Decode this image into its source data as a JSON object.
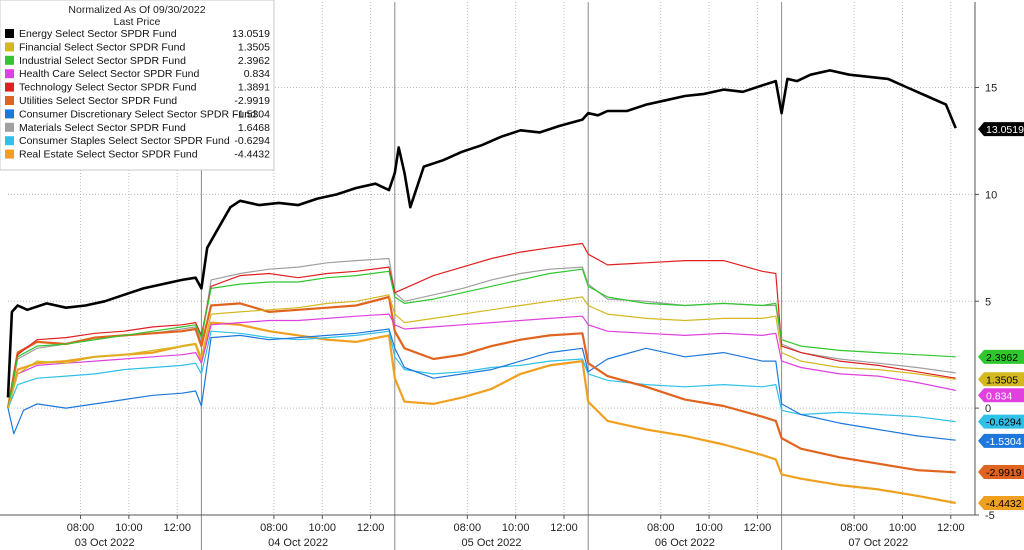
{
  "chart_data": {
    "type": "line",
    "header": {
      "line1": "Normalized As Of 09/30/2022",
      "line2": "Last Price"
    },
    "ylim": [
      -5,
      19
    ],
    "yticks": [
      -5,
      0,
      5,
      10,
      15
    ],
    "ytick_labels": [
      "-5",
      "0",
      "5",
      "10",
      "15"
    ],
    "grid": true,
    "legend_placement": "top-left",
    "x_time_ticks": [
      {
        "label": "08:00",
        "x": 1.375
      },
      {
        "label": "10:00",
        "x": 1.625
      },
      {
        "label": "12:00",
        "x": 1.875
      },
      {
        "label": "08:00",
        "x": 2.375
      },
      {
        "label": "10:00",
        "x": 2.625
      },
      {
        "label": "12:00",
        "x": 2.875
      },
      {
        "label": "08:00",
        "x": 3.375
      },
      {
        "label": "10:00",
        "x": 3.625
      },
      {
        "label": "12:00",
        "x": 3.875
      },
      {
        "label": "08:00",
        "x": 4.375
      },
      {
        "label": "10:00",
        "x": 4.625
      },
      {
        "label": "12:00",
        "x": 4.875
      },
      {
        "label": "08:00",
        "x": 5.375
      },
      {
        "label": "10:00",
        "x": 5.625
      },
      {
        "label": "12:00",
        "x": 5.875
      }
    ],
    "x_day_labels": [
      {
        "label": "03 Oct 2022",
        "x": 1.5
      },
      {
        "label": "04 Oct 2022",
        "x": 2.5
      },
      {
        "label": "05 Oct 2022",
        "x": 3.5
      },
      {
        "label": "06 Oct 2022",
        "x": 4.5
      },
      {
        "label": "07 Oct 2022",
        "x": 5.5
      }
    ],
    "day_boundaries": [
      2.0,
      3.0,
      4.0,
      5.0
    ],
    "xlim": [
      1.0,
      6.0
    ],
    "series": [
      {
        "name": "Energy Select Sector SPDR Fund",
        "value_label": "13.0519",
        "last": 13.0519,
        "color": "#000000",
        "x": [
          1.0,
          1.02,
          1.05,
          1.1,
          1.2,
          1.3,
          1.4,
          1.5,
          1.6,
          1.7,
          1.8,
          1.9,
          1.97,
          2.0,
          2.03,
          2.08,
          2.15,
          2.2,
          2.3,
          2.4,
          2.5,
          2.6,
          2.7,
          2.8,
          2.9,
          2.97,
          3.0,
          3.02,
          3.05,
          3.08,
          3.15,
          3.25,
          3.35,
          3.45,
          3.55,
          3.65,
          3.75,
          3.85,
          3.97,
          4.0,
          4.05,
          4.1,
          4.2,
          4.3,
          4.4,
          4.5,
          4.6,
          4.7,
          4.8,
          4.9,
          4.97,
          5.0,
          5.03,
          5.08,
          5.15,
          5.25,
          5.35,
          5.45,
          5.55,
          5.65,
          5.75,
          5.85,
          5.9
        ],
        "y": [
          0.5,
          4.5,
          4.8,
          4.6,
          4.9,
          4.7,
          4.8,
          5.0,
          5.3,
          5.6,
          5.8,
          6.0,
          6.1,
          5.6,
          7.5,
          8.3,
          9.4,
          9.7,
          9.5,
          9.6,
          9.5,
          9.8,
          10.0,
          10.3,
          10.5,
          10.2,
          11.0,
          12.2,
          11.0,
          9.4,
          11.3,
          11.6,
          12.0,
          12.3,
          12.7,
          13.0,
          12.9,
          13.2,
          13.5,
          13.8,
          13.7,
          13.9,
          13.9,
          14.2,
          14.4,
          14.6,
          14.7,
          14.9,
          14.8,
          15.1,
          15.3,
          13.8,
          15.4,
          15.3,
          15.6,
          15.8,
          15.6,
          15.5,
          15.4,
          15.0,
          14.6,
          14.2,
          13.1
        ]
      },
      {
        "name": "Financial Select Sector SPDR Fund",
        "value_label": "1.3505",
        "last": 1.3505,
        "color": "#d4b820",
        "x": [
          1.0,
          1.05,
          1.15,
          1.3,
          1.45,
          1.6,
          1.75,
          1.9,
          1.97,
          2.0,
          2.05,
          2.2,
          2.35,
          2.5,
          2.65,
          2.8,
          2.97,
          3.0,
          3.05,
          3.2,
          3.35,
          3.5,
          3.65,
          3.8,
          3.97,
          4.0,
          4.1,
          4.3,
          4.5,
          4.7,
          4.9,
          4.97,
          5.0,
          5.1,
          5.3,
          5.5,
          5.7,
          5.9
        ],
        "y": [
          0,
          1.6,
          2.2,
          2.1,
          2.4,
          2.5,
          2.7,
          2.9,
          3.0,
          2.4,
          4.4,
          4.5,
          4.6,
          4.7,
          4.9,
          5.0,
          5.3,
          4.4,
          4.0,
          4.2,
          4.4,
          4.6,
          4.8,
          5.0,
          5.2,
          4.8,
          4.4,
          4.2,
          4.1,
          4.2,
          4.2,
          4.3,
          2.6,
          2.2,
          1.9,
          1.8,
          1.6,
          1.35
        ]
      },
      {
        "name": "Industrial Select Sector SPDR Fund",
        "value_label": "2.3962",
        "last": 2.3962,
        "color": "#2ec82e",
        "x": [
          1.0,
          1.05,
          1.15,
          1.3,
          1.45,
          1.6,
          1.75,
          1.9,
          1.97,
          2.0,
          2.05,
          2.2,
          2.35,
          2.5,
          2.65,
          2.8,
          2.97,
          3.0,
          3.05,
          3.2,
          3.35,
          3.5,
          3.65,
          3.8,
          3.97,
          4.0,
          4.1,
          4.3,
          4.5,
          4.7,
          4.9,
          4.97,
          5.0,
          5.1,
          5.3,
          5.5,
          5.7,
          5.9
        ],
        "y": [
          0,
          2.4,
          2.9,
          3.0,
          3.2,
          3.4,
          3.6,
          3.8,
          3.9,
          3.3,
          5.6,
          5.8,
          5.9,
          5.9,
          6.1,
          6.2,
          6.4,
          5.2,
          4.9,
          5.1,
          5.4,
          5.7,
          6.0,
          6.3,
          6.5,
          5.7,
          5.2,
          4.9,
          4.8,
          4.9,
          4.8,
          4.9,
          3.2,
          2.9,
          2.7,
          2.6,
          2.5,
          2.4
        ]
      },
      {
        "name": "Health Care Select Sector SPDR Fund",
        "value_label": "0.834",
        "last": 0.834,
        "color": "#e040e0",
        "x": [
          1.0,
          1.05,
          1.15,
          1.3,
          1.45,
          1.6,
          1.75,
          1.9,
          1.97,
          2.0,
          2.05,
          2.2,
          2.35,
          2.5,
          2.65,
          2.8,
          2.97,
          3.0,
          3.05,
          3.2,
          3.35,
          3.5,
          3.65,
          3.8,
          3.97,
          4.0,
          4.1,
          4.3,
          4.5,
          4.7,
          4.9,
          4.97,
          5.0,
          5.1,
          5.3,
          5.5,
          5.7,
          5.9
        ],
        "y": [
          0,
          1.6,
          2.0,
          2.1,
          2.2,
          2.3,
          2.4,
          2.5,
          2.6,
          2.1,
          3.9,
          4.0,
          4.1,
          4.1,
          4.2,
          4.3,
          4.4,
          3.9,
          3.7,
          3.8,
          3.9,
          4.0,
          4.1,
          4.2,
          4.3,
          3.9,
          3.6,
          3.5,
          3.4,
          3.5,
          3.4,
          3.5,
          2.2,
          1.9,
          1.6,
          1.5,
          1.2,
          0.83
        ]
      },
      {
        "name": "Technology Select Sector SPDR Fund",
        "value_label": "1.3891",
        "last": 1.3891,
        "color": "#e02020",
        "x": [
          1.0,
          1.05,
          1.15,
          1.3,
          1.45,
          1.6,
          1.75,
          1.9,
          1.97,
          2.0,
          2.05,
          2.2,
          2.35,
          2.5,
          2.65,
          2.8,
          2.97,
          3.0,
          3.05,
          3.2,
          3.35,
          3.5,
          3.65,
          3.8,
          3.97,
          4.0,
          4.1,
          4.3,
          4.5,
          4.7,
          4.9,
          4.97,
          5.0,
          5.1,
          5.3,
          5.5,
          5.7,
          5.9
        ],
        "y": [
          0,
          2.5,
          3.2,
          3.3,
          3.5,
          3.6,
          3.8,
          3.9,
          4.0,
          3.4,
          5.7,
          6.2,
          6.3,
          6.1,
          6.3,
          6.4,
          6.6,
          5.4,
          5.6,
          6.2,
          6.6,
          7.0,
          7.3,
          7.5,
          7.7,
          7.2,
          6.7,
          6.8,
          6.9,
          6.9,
          6.4,
          6.3,
          2.9,
          2.6,
          2.2,
          2.0,
          1.7,
          1.4
        ]
      },
      {
        "name": "Utilities Select Sector SPDR Fund",
        "value_label": "-2.9919",
        "last": -2.9919,
        "color": "#e0641e",
        "x": [
          1.0,
          1.05,
          1.15,
          1.3,
          1.45,
          1.6,
          1.75,
          1.9,
          1.97,
          2.0,
          2.05,
          2.2,
          2.35,
          2.5,
          2.65,
          2.8,
          2.97,
          3.0,
          3.05,
          3.2,
          3.35,
          3.5,
          3.65,
          3.8,
          3.97,
          4.0,
          4.1,
          4.3,
          4.5,
          4.7,
          4.9,
          4.97,
          5.0,
          5.1,
          5.3,
          5.5,
          5.7,
          5.9
        ],
        "y": [
          0,
          2.6,
          3.1,
          3.0,
          3.3,
          3.4,
          3.5,
          3.6,
          3.7,
          2.9,
          4.8,
          4.9,
          4.5,
          4.6,
          4.7,
          4.8,
          5.2,
          3.6,
          2.8,
          2.3,
          2.5,
          2.9,
          3.2,
          3.4,
          3.5,
          2.1,
          1.5,
          1.0,
          0.4,
          0.1,
          -0.4,
          -0.6,
          -1.4,
          -1.9,
          -2.3,
          -2.6,
          -2.9,
          -3.0
        ]
      },
      {
        "name": "Consumer Discretionary Select Sector SPDR Fund",
        "value_label": "-1.5304",
        "last": -1.5304,
        "color": "#1e78dc",
        "x": [
          1.0,
          1.03,
          1.08,
          1.15,
          1.3,
          1.45,
          1.6,
          1.75,
          1.9,
          1.97,
          2.0,
          2.05,
          2.2,
          2.35,
          2.5,
          2.65,
          2.8,
          2.97,
          3.0,
          3.05,
          3.2,
          3.35,
          3.5,
          3.65,
          3.8,
          3.97,
          4.0,
          4.1,
          4.3,
          4.5,
          4.7,
          4.9,
          4.97,
          5.0,
          5.1,
          5.3,
          5.5,
          5.7,
          5.9
        ],
        "y": [
          0,
          -1.2,
          -0.1,
          0.2,
          0.0,
          0.2,
          0.4,
          0.6,
          0.7,
          0.8,
          0.1,
          3.3,
          3.4,
          3.2,
          3.3,
          3.4,
          3.5,
          3.7,
          2.8,
          1.9,
          1.4,
          1.6,
          1.8,
          2.2,
          2.6,
          2.8,
          1.7,
          2.3,
          2.8,
          2.4,
          2.6,
          2.2,
          2.2,
          0.2,
          -0.3,
          -0.7,
          -1.0,
          -1.3,
          -1.5
        ]
      },
      {
        "name": "Materials Select Sector SPDR Fund",
        "value_label": "1.6468",
        "last": 1.6468,
        "color": "#a0a0a0",
        "x": [
          1.0,
          1.05,
          1.15,
          1.3,
          1.45,
          1.6,
          1.75,
          1.9,
          1.97,
          2.0,
          2.05,
          2.2,
          2.35,
          2.5,
          2.65,
          2.8,
          2.97,
          3.0,
          3.05,
          3.2,
          3.35,
          3.5,
          3.65,
          3.8,
          3.97,
          4.0,
          4.1,
          4.3,
          4.5,
          4.7,
          4.9,
          4.97,
          5.0,
          5.1,
          5.3,
          5.5,
          5.7,
          5.9
        ],
        "y": [
          0,
          2.3,
          2.8,
          3.0,
          3.2,
          3.4,
          3.5,
          3.7,
          3.8,
          3.1,
          6.0,
          6.3,
          6.5,
          6.6,
          6.8,
          6.9,
          7.0,
          5.4,
          5.0,
          5.3,
          5.6,
          6.0,
          6.3,
          6.5,
          6.6,
          5.8,
          5.1,
          5.0,
          4.8,
          4.9,
          4.8,
          4.8,
          3.0,
          2.6,
          2.3,
          2.1,
          1.9,
          1.65
        ]
      },
      {
        "name": "Consumer Staples Select Sector SPDR Fund",
        "value_label": "-0.6294",
        "last": -0.6294,
        "color": "#30c0e8",
        "x": [
          1.0,
          1.05,
          1.15,
          1.3,
          1.45,
          1.6,
          1.75,
          1.9,
          1.97,
          2.0,
          2.05,
          2.2,
          2.35,
          2.5,
          2.65,
          2.8,
          2.97,
          3.0,
          3.05,
          3.2,
          3.35,
          3.5,
          3.65,
          3.8,
          3.97,
          4.0,
          4.1,
          4.3,
          4.5,
          4.7,
          4.9,
          4.97,
          5.0,
          5.1,
          5.3,
          5.5,
          5.7,
          5.9
        ],
        "y": [
          0,
          1.1,
          1.4,
          1.5,
          1.6,
          1.8,
          1.9,
          2.0,
          2.1,
          1.6,
          3.6,
          3.5,
          3.3,
          3.2,
          3.3,
          3.4,
          3.6,
          2.4,
          1.8,
          1.6,
          1.7,
          1.9,
          2.0,
          2.2,
          2.3,
          1.6,
          1.3,
          1.1,
          1.0,
          1.1,
          1.0,
          1.1,
          -0.1,
          -0.3,
          -0.2,
          -0.3,
          -0.4,
          -0.63
        ]
      },
      {
        "name": "Real Estate Select Sector SPDR Fund",
        "value_label": "-4.4432",
        "last": -4.4432,
        "color": "#f0a020",
        "x": [
          1.0,
          1.05,
          1.15,
          1.3,
          1.45,
          1.6,
          1.75,
          1.9,
          1.97,
          2.0,
          2.05,
          2.2,
          2.35,
          2.5,
          2.65,
          2.8,
          2.97,
          3.0,
          3.05,
          3.2,
          3.35,
          3.5,
          3.65,
          3.8,
          3.97,
          4.0,
          4.1,
          4.3,
          4.5,
          4.7,
          4.9,
          4.97,
          5.0,
          5.1,
          5.3,
          5.5,
          5.7,
          5.9
        ],
        "y": [
          0,
          1.8,
          2.1,
          2.2,
          2.4,
          2.5,
          2.6,
          2.9,
          3.0,
          2.2,
          4.0,
          3.9,
          3.6,
          3.4,
          3.2,
          3.1,
          3.4,
          1.4,
          0.3,
          0.2,
          0.5,
          0.9,
          1.6,
          2.0,
          2.2,
          0.3,
          -0.6,
          -1.0,
          -1.3,
          -1.7,
          -2.2,
          -2.4,
          -3.1,
          -3.3,
          -3.6,
          -3.8,
          -4.1,
          -4.44
        ]
      }
    ],
    "right_labels": [
      {
        "text": "13.0519",
        "y": 13.05,
        "color": "#000000",
        "text_color": "#ffffff"
      },
      {
        "text": "2.3962",
        "y": 2.4,
        "color": "#2ec82e",
        "text_color": "#000000"
      },
      {
        "text": "1.3505",
        "y": 1.35,
        "color": "#d4b820",
        "text_color": "#000000"
      },
      {
        "text": "0.834",
        "y": 0.6,
        "color": "#e040e0",
        "text_color": "#ffffff"
      },
      {
        "text": "-0.6294",
        "y": -0.63,
        "color": "#30c0e8",
        "text_color": "#000000"
      },
      {
        "text": "-1.5304",
        "y": -1.53,
        "color": "#1e78dc",
        "text_color": "#ffffff"
      },
      {
        "text": "-2.9919",
        "y": -2.99,
        "color": "#e0641e",
        "text_color": "#000000"
      },
      {
        "text": "-4.4432",
        "y": -4.44,
        "color": "#f0a020",
        "text_color": "#000000"
      }
    ]
  }
}
